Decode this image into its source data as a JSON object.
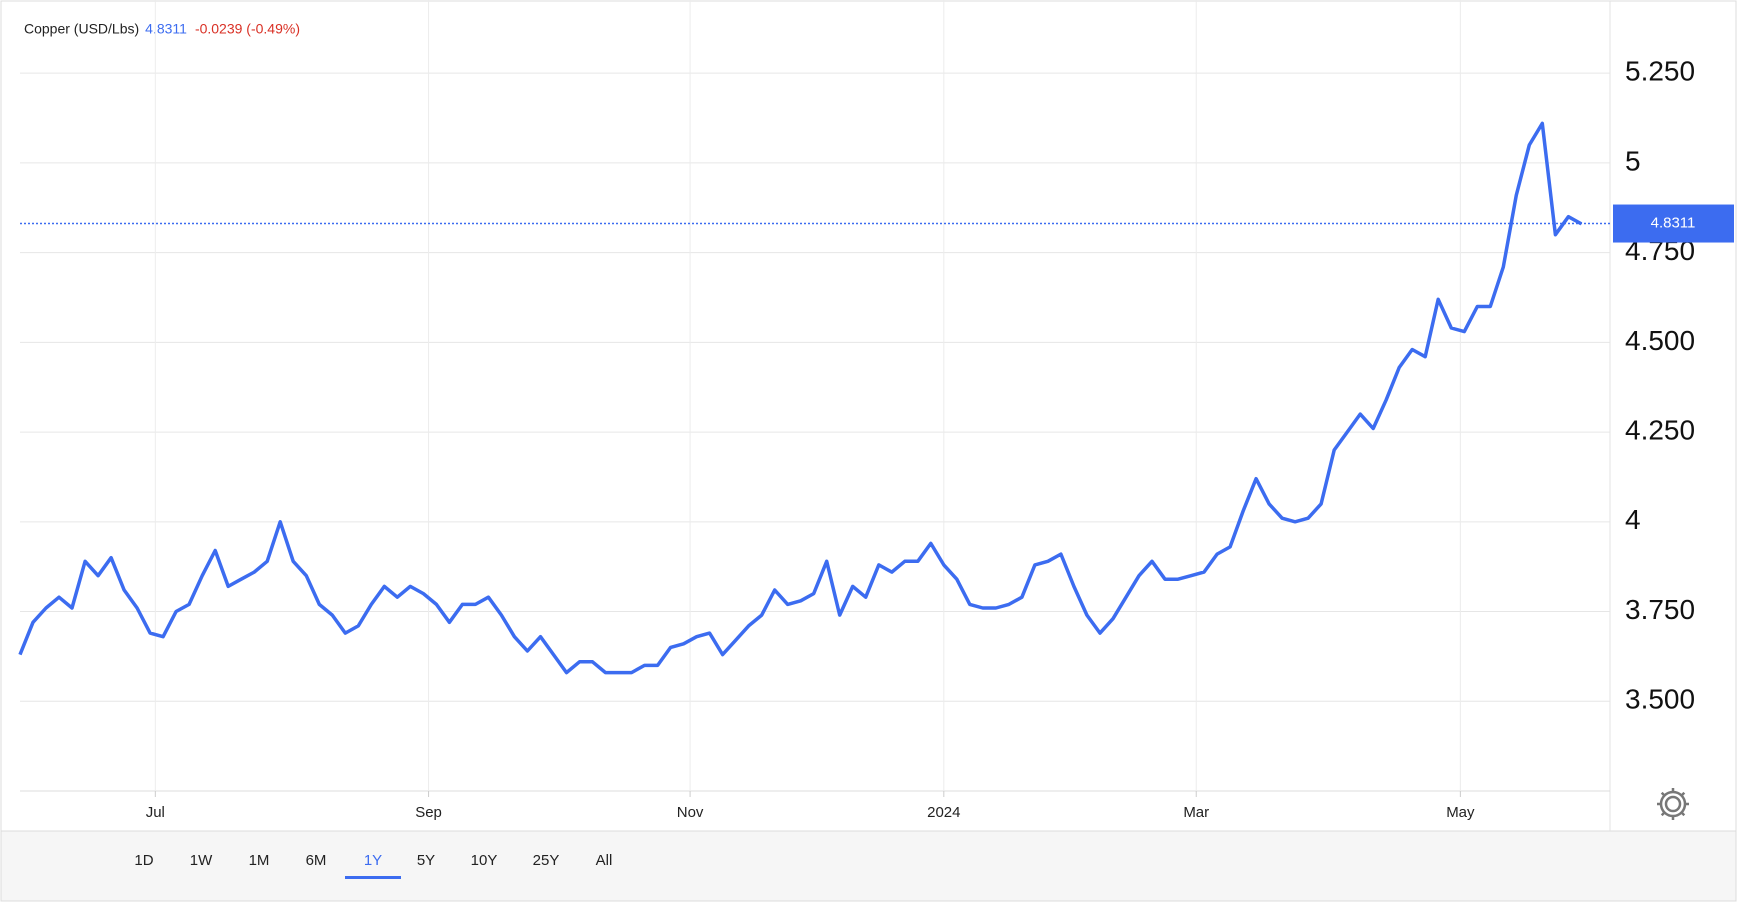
{
  "chart_data": {
    "type": "line",
    "series": [
      {
        "name": "Copper (USD/Lbs)",
        "color": "#3c6cf0",
        "values": [
          3.63,
          3.72,
          3.76,
          3.79,
          3.76,
          3.89,
          3.85,
          3.9,
          3.81,
          3.76,
          3.69,
          3.68,
          3.75,
          3.77,
          3.85,
          3.92,
          3.82,
          3.84,
          3.86,
          3.89,
          4.0,
          3.89,
          3.85,
          3.77,
          3.74,
          3.69,
          3.71,
          3.77,
          3.82,
          3.79,
          3.82,
          3.8,
          3.77,
          3.72,
          3.77,
          3.77,
          3.79,
          3.74,
          3.68,
          3.64,
          3.68,
          3.63,
          3.58,
          3.61,
          3.61,
          3.58,
          3.58,
          3.58,
          3.6,
          3.6,
          3.65,
          3.66,
          3.68,
          3.69,
          3.63,
          3.67,
          3.71,
          3.74,
          3.81,
          3.77,
          3.78,
          3.8,
          3.89,
          3.74,
          3.82,
          3.79,
          3.88,
          3.86,
          3.89,
          3.89,
          3.94,
          3.88,
          3.84,
          3.77,
          3.76,
          3.76,
          3.77,
          3.79,
          3.88,
          3.89,
          3.91,
          3.82,
          3.74,
          3.69,
          3.73,
          3.79,
          3.85,
          3.89,
          3.84,
          3.84,
          3.85,
          3.86,
          3.91,
          3.93,
          4.03,
          4.12,
          4.05,
          4.01,
          4.0,
          4.01,
          4.05,
          4.2,
          4.25,
          4.3,
          4.26,
          4.34,
          4.43,
          4.48,
          4.46,
          4.62,
          4.54,
          4.53,
          4.6,
          4.6,
          4.71,
          4.91,
          5.05,
          5.11,
          4.8,
          4.85,
          4.83
        ]
      }
    ],
    "last_price": 4.8311,
    "change": "-0.0239 (-0.49%)",
    "xlim": [
      0,
      122.2
    ],
    "xticks": [
      {
        "value": 10.4,
        "label": "Jul"
      },
      {
        "value": 31.4,
        "label": "Sep"
      },
      {
        "value": 51.5,
        "label": "Nov"
      },
      {
        "value": 71.0,
        "label": "2024"
      },
      {
        "value": 90.4,
        "label": "Mar"
      },
      {
        "value": 110.7,
        "label": "May"
      }
    ],
    "ylim": [
      3.25,
      5.45
    ],
    "yticks": [
      {
        "value": 3.5,
        "label": "3.500"
      },
      {
        "value": 3.75,
        "label": "3.750"
      },
      4,
      {
        "value": 4.25,
        "label": "4.250"
      },
      {
        "value": 4.5,
        "label": "4.500"
      },
      {
        "value": 4.75,
        "label": "4.750"
      },
      5,
      {
        "value": 5.25,
        "label": "5.250"
      }
    ],
    "grid": true,
    "range_buttons": [
      "1D",
      "1W",
      "1M",
      "6M",
      "1Y",
      "5Y",
      "10Y",
      "25Y",
      "All"
    ],
    "active_range": "1Y"
  }
}
